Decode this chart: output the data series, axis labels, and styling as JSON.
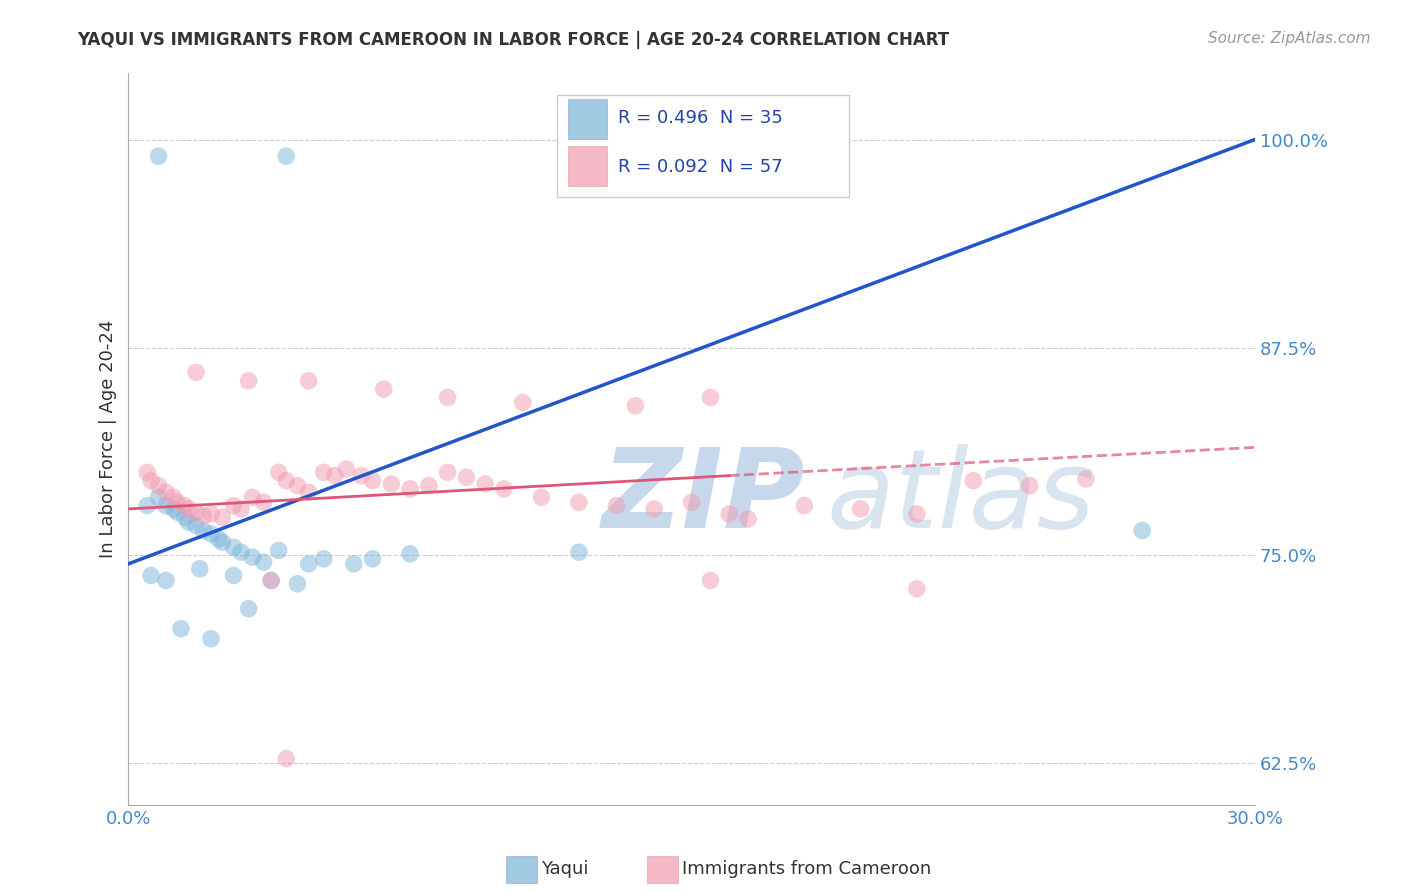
{
  "title": "YAQUI VS IMMIGRANTS FROM CAMEROON IN LABOR FORCE | AGE 20-24 CORRELATION CHART",
  "source": "Source: ZipAtlas.com",
  "ylabel": "In Labor Force | Age 20-24",
  "xmin": 0.0,
  "xmax": 0.3,
  "ymin": 0.6,
  "ymax": 1.04,
  "yticks": [
    0.625,
    0.75,
    0.875,
    1.0
  ],
  "ytick_labels": [
    "62.5%",
    "75.0%",
    "87.5%",
    "100.0%"
  ],
  "xticks": [
    0.0,
    0.075,
    0.15,
    0.225,
    0.3
  ],
  "xtick_labels": [
    "0.0%",
    "",
    "",
    "",
    "30.0%"
  ],
  "legend_items": [
    {
      "label": "R = 0.496  N = 35",
      "color": "#a8c8e8"
    },
    {
      "label": "R = 0.092  N = 57",
      "color": "#f4b8c8"
    }
  ],
  "legend_labels_bottom": [
    "Yaqui",
    "Immigrants from Cameroon"
  ],
  "yaqui_color": "#7ab4d8",
  "cameroon_color": "#f09ab0",
  "yaqui_line_color": "#2255cc",
  "cameroon_line_color": "#dd5577",
  "background_color": "#ffffff",
  "grid_color": "#cccccc",
  "yaqui_x": [
    0.008,
    0.042,
    0.005,
    0.008,
    0.01,
    0.012,
    0.013,
    0.015,
    0.016,
    0.018,
    0.02,
    0.022,
    0.024,
    0.025,
    0.028,
    0.03,
    0.033,
    0.036,
    0.04,
    0.048,
    0.052,
    0.06,
    0.065,
    0.075,
    0.006,
    0.01,
    0.019,
    0.028,
    0.038,
    0.045,
    0.12,
    0.27,
    0.014,
    0.022,
    0.032
  ],
  "yaqui_y": [
    0.99,
    0.99,
    0.78,
    0.785,
    0.78,
    0.778,
    0.776,
    0.773,
    0.77,
    0.768,
    0.765,
    0.763,
    0.76,
    0.758,
    0.755,
    0.752,
    0.749,
    0.746,
    0.753,
    0.745,
    0.748,
    0.745,
    0.748,
    0.751,
    0.738,
    0.735,
    0.742,
    0.738,
    0.735,
    0.733,
    0.752,
    0.765,
    0.706,
    0.7,
    0.718
  ],
  "cameroon_x": [
    0.005,
    0.006,
    0.008,
    0.01,
    0.012,
    0.013,
    0.015,
    0.016,
    0.018,
    0.02,
    0.022,
    0.025,
    0.028,
    0.03,
    0.033,
    0.036,
    0.04,
    0.042,
    0.045,
    0.048,
    0.052,
    0.055,
    0.058,
    0.062,
    0.065,
    0.07,
    0.075,
    0.08,
    0.085,
    0.09,
    0.095,
    0.1,
    0.11,
    0.12,
    0.13,
    0.14,
    0.15,
    0.16,
    0.165,
    0.18,
    0.195,
    0.21,
    0.225,
    0.24,
    0.255,
    0.018,
    0.032,
    0.048,
    0.068,
    0.085,
    0.105,
    0.135,
    0.155,
    0.038,
    0.155,
    0.21,
    0.042
  ],
  "cameroon_y": [
    0.8,
    0.795,
    0.792,
    0.788,
    0.785,
    0.782,
    0.78,
    0.778,
    0.776,
    0.774,
    0.775,
    0.773,
    0.78,
    0.778,
    0.785,
    0.782,
    0.8,
    0.795,
    0.792,
    0.788,
    0.8,
    0.798,
    0.802,
    0.798,
    0.795,
    0.793,
    0.79,
    0.792,
    0.8,
    0.797,
    0.793,
    0.79,
    0.785,
    0.782,
    0.78,
    0.778,
    0.782,
    0.775,
    0.772,
    0.78,
    0.778,
    0.775,
    0.795,
    0.792,
    0.796,
    0.86,
    0.855,
    0.855,
    0.85,
    0.845,
    0.842,
    0.84,
    0.845,
    0.735,
    0.735,
    0.73,
    0.628
  ],
  "yaqui_line_x0": 0.0,
  "yaqui_line_y0": 0.745,
  "yaqui_line_x1": 0.3,
  "yaqui_line_y1": 1.0,
  "cameroon_line_x0": 0.0,
  "cameroon_line_y0": 0.778,
  "cameroon_line_x1": 0.3,
  "cameroon_line_y1": 0.815
}
